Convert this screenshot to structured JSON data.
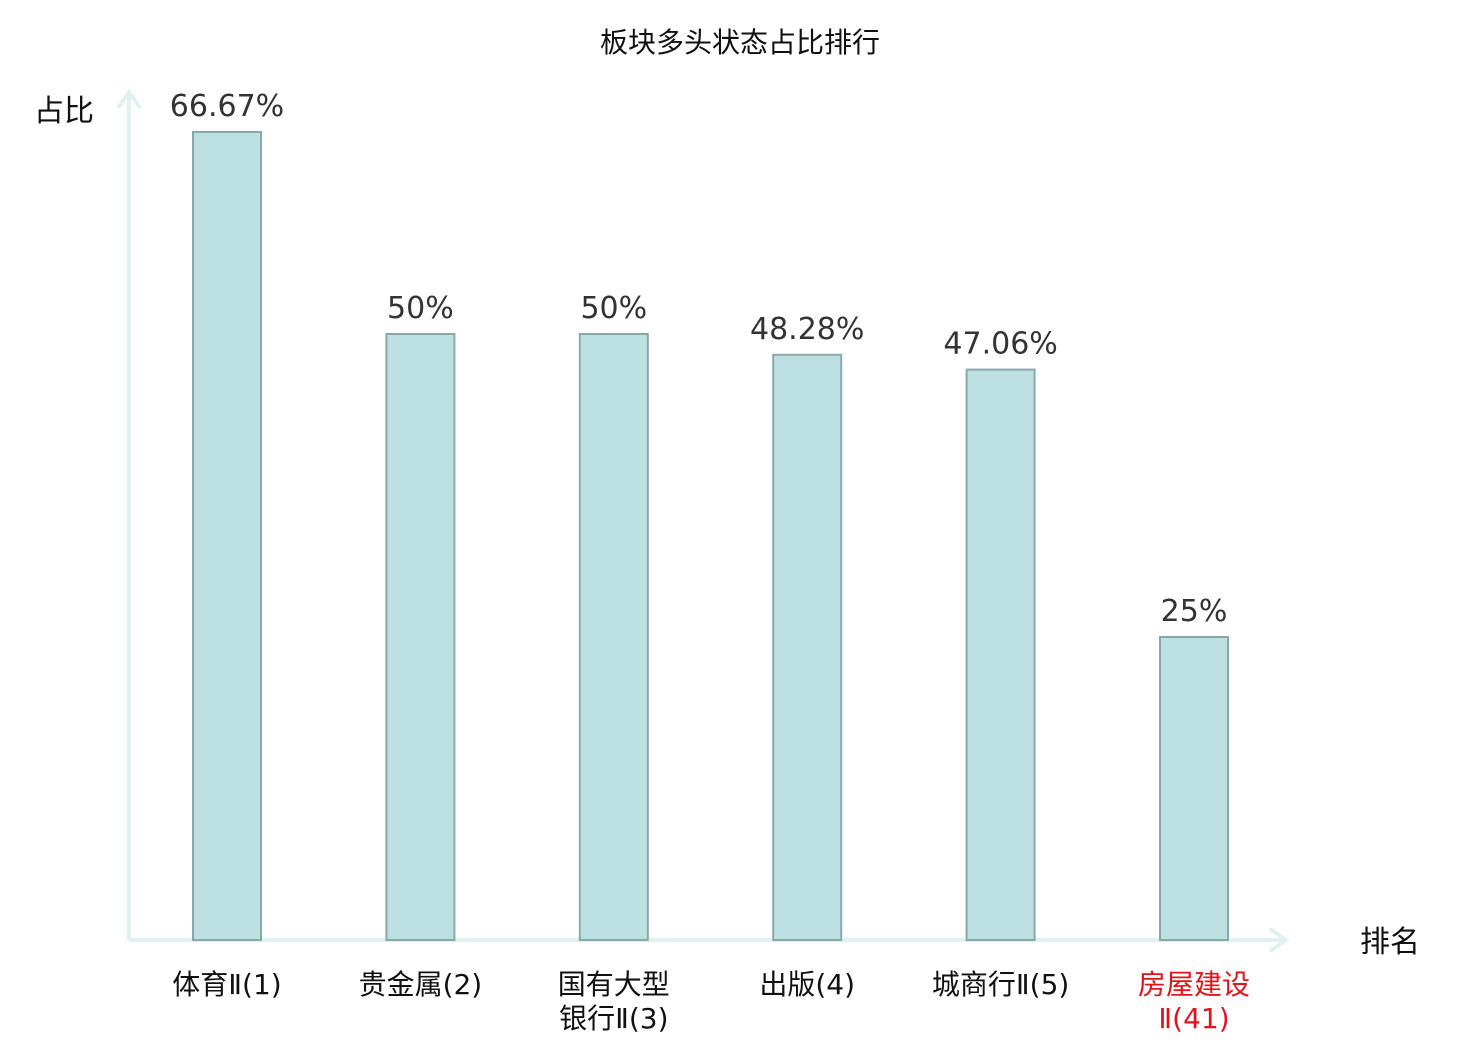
{
  "chart_data": {
    "type": "bar",
    "title": "板块多头状态占比排行",
    "ylabel": "占比",
    "xlabel": "排名",
    "ylim": [
      0,
      70
    ],
    "grid": false,
    "colors": {
      "bar_fill": "#bde1e3",
      "bar_stroke": "#8aa8aa",
      "axis": "#dff2ef",
      "highlight": "#e0141c",
      "text": "#111111"
    },
    "categories": [
      {
        "lines": [
          "体育Ⅱ(1)"
        ],
        "highlight": false
      },
      {
        "lines": [
          "贵金属(2)"
        ],
        "highlight": false
      },
      {
        "lines": [
          "国有大型",
          "银行Ⅱ(3)"
        ],
        "highlight": false
      },
      {
        "lines": [
          "出版(4)"
        ],
        "highlight": false
      },
      {
        "lines": [
          "城商行Ⅱ(5)"
        ],
        "highlight": false
      },
      {
        "lines": [
          "房屋建设",
          "Ⅱ(41)"
        ],
        "highlight": true
      }
    ],
    "values": [
      66.67,
      50,
      50,
      48.28,
      47.06,
      25
    ],
    "value_labels": [
      "66.67%",
      "50%",
      "50%",
      "48.28%",
      "47.06%",
      "25%"
    ]
  }
}
